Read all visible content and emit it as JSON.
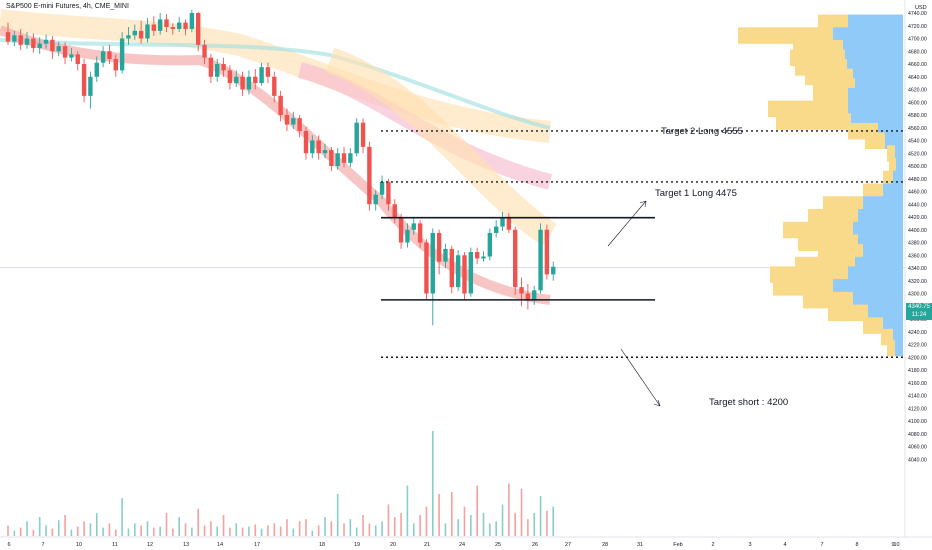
{
  "header": {
    "title": "S&P500 E-mini Futures, 4h, CME_MINI"
  },
  "price_axis": {
    "currency": "USD",
    "ticks": [
      "4740.00",
      "4720.00",
      "4700.00",
      "4680.00",
      "4660.00",
      "4640.00",
      "4620.00",
      "4600.00",
      "4580.00",
      "4560.00",
      "4540.00",
      "4520.00",
      "4500.00",
      "4480.00",
      "4460.00",
      "4440.00",
      "4420.00",
      "4400.00",
      "4380.00",
      "4360.00",
      "4340.00",
      "4320.00",
      "4300.00",
      "4280.00",
      "4260.00",
      "4240.00",
      "4220.00",
      "4200.00",
      "4180.00",
      "4160.00",
      "4140.00",
      "4120.00",
      "4100.00",
      "4080.00",
      "4060.00",
      "4040.00"
    ],
    "current_price": "4340.75",
    "countdown": "11:24",
    "current_color": "#26a69a"
  },
  "time_axis": {
    "ticks": [
      "6",
      "7",
      "10",
      "11",
      "12",
      "13",
      "14",
      "17",
      "18",
      "19",
      "20",
      "21",
      "24",
      "25",
      "26",
      "27",
      "28",
      "31",
      "Feb",
      "2",
      "3",
      "4",
      "7",
      "8",
      "9",
      "10"
    ]
  },
  "annotations": {
    "target2": "Target 2 Long 4555",
    "target1": "Target 1 Long  4475",
    "target_short": "Target short : 4200"
  },
  "colors": {
    "up": "#26a69a",
    "down": "#ef5350",
    "profile_up": "#90caf9",
    "profile_down": "#f9da8a"
  },
  "chart_data": {
    "type": "candlestick",
    "y_unit": "USD",
    "ylim": [
      4030,
      4750
    ],
    "levels": {
      "target2_long": 4555,
      "target1_long": 4475,
      "range_top": 4419,
      "range_bottom": 4290,
      "target_short": 4200
    },
    "candles": [
      [
        4710,
        4695,
        4725,
        4690
      ],
      [
        4695,
        4705,
        4712,
        4688
      ],
      [
        4705,
        4690,
        4715,
        4682
      ],
      [
        4690,
        4700,
        4710,
        4684
      ],
      [
        4700,
        4685,
        4708,
        4678
      ],
      [
        4685,
        4692,
        4702,
        4676
      ],
      [
        4692,
        4698,
        4706,
        4684
      ],
      [
        4698,
        4680,
        4704,
        4668
      ],
      [
        4680,
        4688,
        4695,
        4672
      ],
      [
        4688,
        4670,
        4694,
        4660
      ],
      [
        4670,
        4675,
        4685,
        4664
      ],
      [
        4675,
        4660,
        4680,
        4650
      ],
      [
        4660,
        4610,
        4668,
        4600
      ],
      [
        4610,
        4640,
        4648,
        4590
      ],
      [
        4640,
        4662,
        4672,
        4632
      ],
      [
        4662,
        4680,
        4688,
        4655
      ],
      [
        4680,
        4668,
        4690,
        4660
      ],
      [
        4668,
        4650,
        4675,
        4640
      ],
      [
        4650,
        4700,
        4710,
        4645
      ],
      [
        4700,
        4705,
        4718,
        4690
      ],
      [
        4705,
        4712,
        4722,
        4698
      ],
      [
        4712,
        4700,
        4728,
        4692
      ],
      [
        4700,
        4722,
        4732,
        4694
      ],
      [
        4722,
        4712,
        4735,
        4704
      ],
      [
        4712,
        4730,
        4740,
        4706
      ],
      [
        4730,
        4718,
        4738,
        4710
      ],
      [
        4718,
        4715,
        4724,
        4706
      ],
      [
        4715,
        4725,
        4734,
        4710
      ],
      [
        4725,
        4715,
        4730,
        4705
      ],
      [
        4715,
        4740,
        4745,
        4710
      ],
      [
        4740,
        4690,
        4742,
        4680
      ],
      [
        4690,
        4670,
        4698,
        4660
      ],
      [
        4670,
        4640,
        4676,
        4630
      ],
      [
        4640,
        4660,
        4668,
        4632
      ],
      [
        4660,
        4650,
        4670,
        4640
      ],
      [
        4650,
        4630,
        4658,
        4620
      ],
      [
        4630,
        4640,
        4650,
        4624
      ],
      [
        4640,
        4620,
        4648,
        4610
      ],
      [
        4620,
        4640,
        4650,
        4612
      ],
      [
        4640,
        4630,
        4652,
        4620
      ],
      [
        4630,
        4655,
        4662,
        4626
      ],
      [
        4655,
        4640,
        4662,
        4630
      ],
      [
        4640,
        4610,
        4648,
        4600
      ],
      [
        4610,
        4580,
        4618,
        4570
      ],
      [
        4580,
        4565,
        4590,
        4555
      ],
      [
        4565,
        4575,
        4585,
        4558
      ],
      [
        4575,
        4555,
        4580,
        4545
      ],
      [
        4555,
        4520,
        4562,
        4510
      ],
      [
        4520,
        4540,
        4548,
        4512
      ],
      [
        4540,
        4520,
        4548,
        4510
      ],
      [
        4520,
        4525,
        4535,
        4512
      ],
      [
        4525,
        4500,
        4530,
        4492
      ],
      [
        4500,
        4520,
        4528,
        4494
      ],
      [
        4520,
        4505,
        4530,
        4498
      ],
      [
        4505,
        4520,
        4528,
        4498
      ],
      [
        4520,
        4568,
        4575,
        4515
      ],
      [
        4568,
        4530,
        4575,
        4520
      ],
      [
        4530,
        4440,
        4538,
        4430
      ],
      [
        4440,
        4455,
        4462,
        4430
      ],
      [
        4455,
        4475,
        4485,
        4448
      ],
      [
        4475,
        4440,
        4480,
        4430
      ],
      [
        4440,
        4420,
        4448,
        4410
      ],
      [
        4420,
        4380,
        4425,
        4370
      ],
      [
        4380,
        4400,
        4410,
        4372
      ],
      [
        4400,
        4410,
        4418,
        4392
      ],
      [
        4410,
        4380,
        4415,
        4372
      ],
      [
        4380,
        4300,
        4385,
        4290
      ],
      [
        4300,
        4395,
        4402,
        4250
      ],
      [
        4395,
        4350,
        4400,
        4330
      ],
      [
        4350,
        4370,
        4378,
        4340
      ],
      [
        4370,
        4310,
        4375,
        4300
      ],
      [
        4310,
        4360,
        4368,
        4304
      ],
      [
        4360,
        4300,
        4365,
        4290
      ],
      [
        4300,
        4365,
        4372,
        4295
      ],
      [
        4365,
        4355,
        4372,
        4346
      ],
      [
        4355,
        4358,
        4366,
        4350
      ],
      [
        4358,
        4395,
        4402,
        4352
      ],
      [
        4395,
        4405,
        4415,
        4388
      ],
      [
        4405,
        4420,
        4428,
        4398
      ],
      [
        4420,
        4400,
        4426,
        4395
      ],
      [
        4400,
        4310,
        4405,
        4298
      ],
      [
        4310,
        4300,
        4325,
        4280
      ],
      [
        4300,
        4290,
        4315,
        4275
      ],
      [
        4290,
        4305,
        4312,
        4282
      ],
      [
        4305,
        4400,
        4410,
        4300
      ],
      [
        4400,
        4330,
        4408,
        4322
      ],
      [
        4330,
        4342,
        4350,
        4320
      ]
    ],
    "volume": [
      10,
      5,
      8,
      14,
      6,
      18,
      10,
      7,
      15,
      20,
      6,
      9,
      14,
      12,
      22,
      8,
      12,
      6,
      36,
      7,
      12,
      10,
      14,
      8,
      9,
      22,
      7,
      18,
      12,
      8,
      26,
      10,
      14,
      9,
      20,
      8,
      12,
      8,
      9,
      11,
      7,
      10,
      12,
      9,
      16,
      7,
      14,
      16,
      5,
      10,
      18,
      14,
      40,
      12,
      16,
      8,
      20,
      12,
      10,
      14,
      30,
      18,
      22,
      48,
      12,
      20,
      28,
      100,
      40,
      12,
      42,
      16,
      28,
      20,
      48,
      22,
      12,
      14,
      30,
      50,
      22,
      45,
      16,
      22,
      38,
      24,
      28
    ],
    "volume_profile": [
      [
        4725,
        30,
        55
      ],
      [
        4705,
        95,
        70
      ],
      [
        4685,
        50,
        60
      ],
      [
        4670,
        55,
        58
      ],
      [
        4655,
        52,
        56
      ],
      [
        4640,
        48,
        50
      ],
      [
        4625,
        42,
        48
      ],
      [
        4610,
        35,
        55
      ],
      [
        4590,
        80,
        55
      ],
      [
        4570,
        75,
        52
      ],
      [
        4555,
        30,
        25
      ],
      [
        4540,
        20,
        18
      ],
      [
        4520,
        8,
        8
      ],
      [
        4500,
        7,
        7
      ],
      [
        4480,
        10,
        10
      ],
      [
        4460,
        20,
        20
      ],
      [
        4440,
        40,
        40
      ],
      [
        4420,
        50,
        45
      ],
      [
        4400,
        70,
        50
      ],
      [
        4380,
        60,
        45
      ],
      [
        4365,
        45,
        40
      ],
      [
        4345,
        60,
        48
      ],
      [
        4330,
        78,
        55
      ],
      [
        4310,
        60,
        70
      ],
      [
        4290,
        50,
        50
      ],
      [
        4270,
        40,
        35
      ],
      [
        4250,
        20,
        20
      ],
      [
        4232,
        12,
        10
      ],
      [
        4215,
        8,
        8
      ]
    ]
  }
}
